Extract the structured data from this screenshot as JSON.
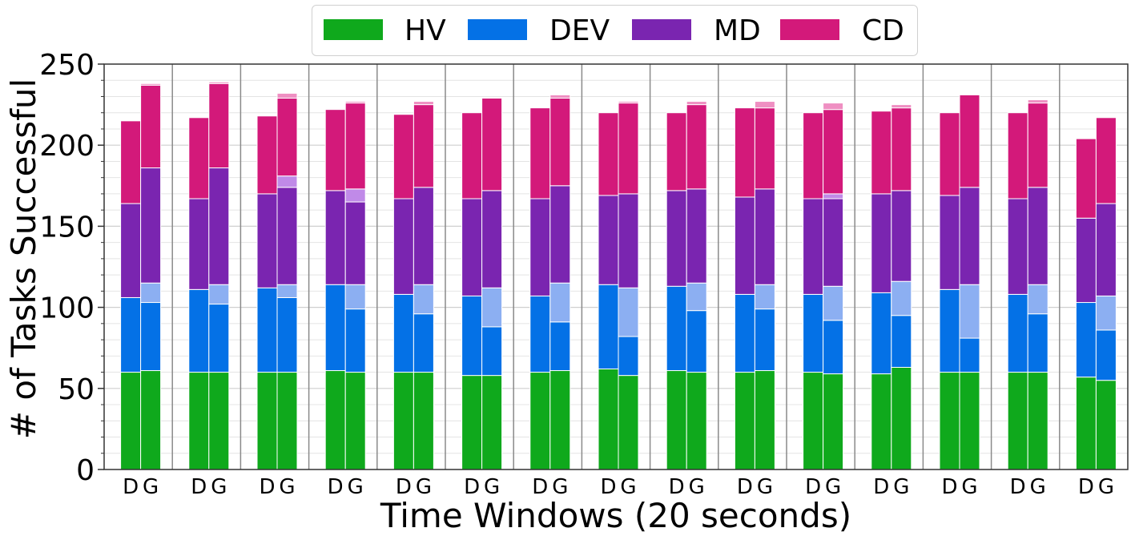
{
  "chart_data": {
    "type": "bar",
    "stacked": true,
    "ylabel": "# of Tasks Successful",
    "xlabel": "Time Windows (20 seconds)",
    "ylim": [
      0,
      250
    ],
    "yticks": [
      "0",
      "50",
      "100",
      "150",
      "200",
      "250"
    ],
    "bar_labels": [
      "D",
      "G"
    ],
    "legend_position": "top-center",
    "series": [
      {
        "name": "HV",
        "color": "#0fa91c",
        "light_color": "#7fd77a"
      },
      {
        "name": "DEV",
        "color": "#0471e6",
        "light_color": "#8caff2"
      },
      {
        "name": "MD",
        "color": "#7a25b0",
        "light_color": "#c08ae8"
      },
      {
        "name": "CD",
        "color": "#d3197a",
        "light_color": "#ef8fc2"
      }
    ],
    "windows": [
      {
        "D": [
          60,
          46,
          58,
          51
        ],
        "G": [
          61,
          42,
          71,
          51
        ],
        "G_extra": [
          0,
          12,
          0,
          1
        ]
      },
      {
        "D": [
          60,
          51,
          56,
          50
        ],
        "G": [
          60,
          42,
          72,
          52
        ],
        "G_extra": [
          0,
          12,
          0,
          1
        ]
      },
      {
        "D": [
          60,
          52,
          58,
          48
        ],
        "G": [
          60,
          46,
          60,
          48
        ],
        "G_extra": [
          0,
          8,
          7,
          3
        ]
      },
      {
        "D": [
          61,
          53,
          58,
          50
        ],
        "G": [
          60,
          39,
          51,
          53
        ],
        "G_extra": [
          0,
          15,
          8,
          1
        ]
      },
      {
        "D": [
          60,
          48,
          59,
          52
        ],
        "G": [
          60,
          36,
          60,
          51
        ],
        "G_extra": [
          0,
          18,
          0,
          2
        ]
      },
      {
        "D": [
          58,
          49,
          60,
          53
        ],
        "G": [
          58,
          30,
          60,
          57
        ],
        "G_extra": [
          0,
          24,
          0,
          0
        ]
      },
      {
        "D": [
          60,
          47,
          60,
          56
        ],
        "G": [
          61,
          30,
          60,
          54
        ],
        "G_extra": [
          0,
          24,
          0,
          2
        ]
      },
      {
        "D": [
          62,
          52,
          55,
          51
        ],
        "G": [
          58,
          24,
          58,
          56
        ],
        "G_extra": [
          0,
          30,
          0,
          1
        ]
      },
      {
        "D": [
          61,
          52,
          59,
          48
        ],
        "G": [
          60,
          38,
          58,
          52
        ],
        "G_extra": [
          0,
          17,
          0,
          2
        ]
      },
      {
        "D": [
          60,
          48,
          60,
          55
        ],
        "G": [
          61,
          38,
          59,
          50
        ],
        "G_extra": [
          0,
          15,
          0,
          4
        ]
      },
      {
        "D": [
          60,
          48,
          59,
          53
        ],
        "G": [
          59,
          33,
          54,
          52
        ],
        "G_extra": [
          0,
          21,
          3,
          4
        ]
      },
      {
        "D": [
          59,
          50,
          61,
          51
        ],
        "G": [
          63,
          32,
          56,
          51
        ],
        "G_extra": [
          0,
          21,
          0,
          2
        ]
      },
      {
        "D": [
          60,
          51,
          58,
          51
        ],
        "G": [
          60,
          21,
          60,
          57
        ],
        "G_extra": [
          0,
          33,
          0,
          0
        ]
      },
      {
        "D": [
          60,
          48,
          59,
          53
        ],
        "G": [
          60,
          36,
          60,
          52
        ],
        "G_extra": [
          0,
          18,
          0,
          2
        ]
      },
      {
        "D": [
          57,
          46,
          52,
          49
        ],
        "G": [
          55,
          31,
          57,
          53
        ],
        "G_extra": [
          0,
          21,
          0,
          0
        ]
      }
    ]
  }
}
